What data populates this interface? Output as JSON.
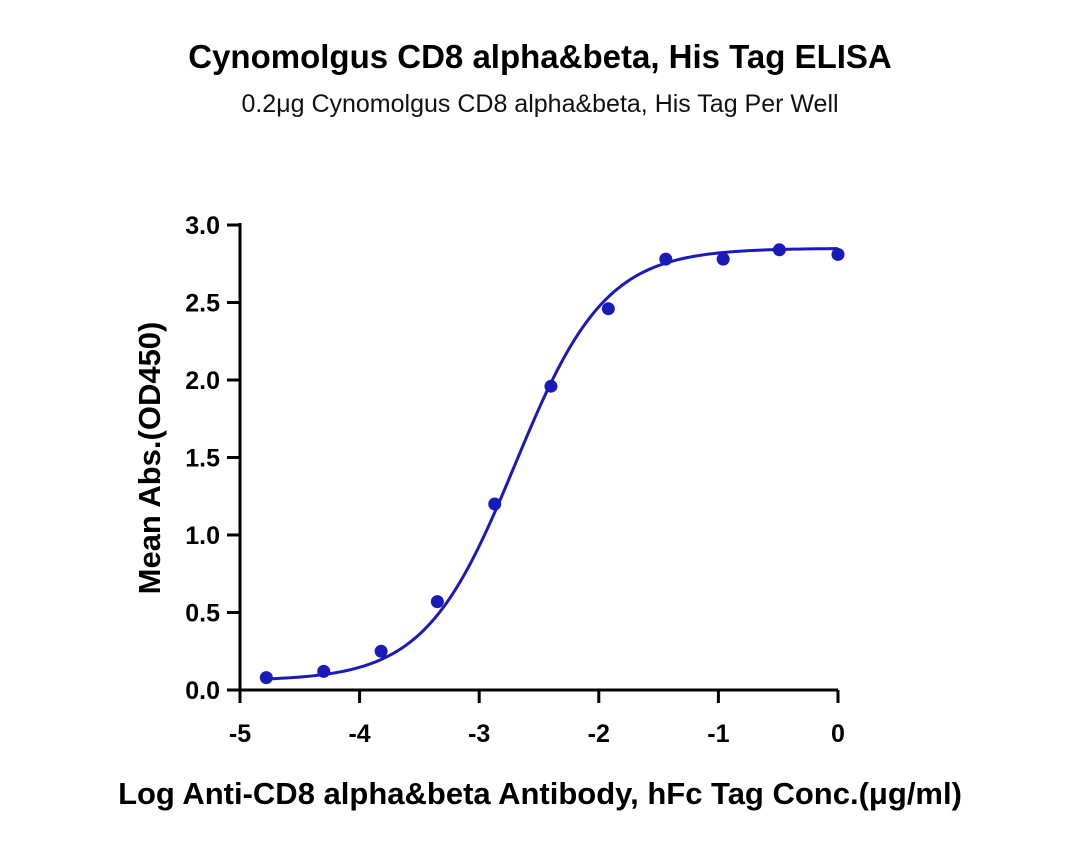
{
  "title": "Cynomolgus CD8 alpha&beta, His Tag ELISA",
  "subtitle": "0.2μg Cynomolgus CD8 alpha&beta, His Tag Per Well",
  "colors": {
    "series": "#1a1ab8",
    "axis": "#000000"
  },
  "chart_data": {
    "type": "scatter",
    "title": "Cynomolgus CD8 alpha&beta, His Tag ELISA",
    "subtitle": "0.2μg Cynomolgus CD8 alpha&beta, His Tag Per Well",
    "xlabel": "Log Anti-CD8 alpha&beta Antibody, hFc Tag Conc.(μg/ml)",
    "ylabel": "Mean Abs.(OD450)",
    "xlim": [
      -5,
      0
    ],
    "ylim": [
      0,
      3.0
    ],
    "xticks": [
      "-5",
      "-4",
      "-3",
      "-2",
      "-1",
      "0"
    ],
    "yticks": [
      "0.0",
      "0.5",
      "1.0",
      "1.5",
      "2.0",
      "2.5",
      "3.0"
    ],
    "grid": false,
    "series": [
      {
        "x": [
          -4.78,
          -4.3,
          -3.82,
          -3.35,
          -2.87,
          -2.4,
          -1.92,
          -1.44,
          -0.96,
          -0.49,
          0.0
        ],
        "y": [
          0.08,
          0.12,
          0.25,
          0.57,
          1.2,
          1.96,
          2.46,
          2.78,
          2.78,
          2.84,
          2.81
        ]
      }
    ],
    "fit_curve": {
      "type": "4PL",
      "bottom": 0.06,
      "top": 2.85,
      "log_ec50": -2.7,
      "hill_slope": 1.15
    }
  }
}
